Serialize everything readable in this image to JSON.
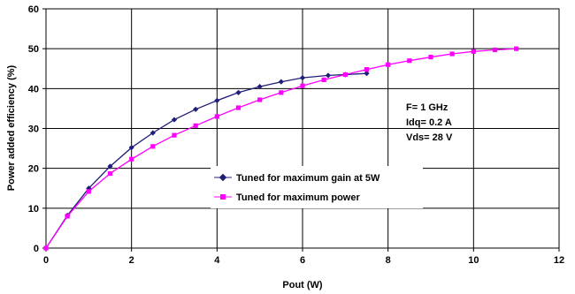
{
  "chart_data": {
    "type": "line",
    "title": "",
    "xlabel": "Pout (W)",
    "ylabel": "Power added efficiency (%)",
    "xlim": [
      0,
      12
    ],
    "ylim": [
      0,
      60
    ],
    "xticks": [
      0,
      2,
      4,
      6,
      8,
      10,
      12
    ],
    "yticks": [
      0,
      10,
      20,
      30,
      40,
      50,
      60
    ],
    "grid": true,
    "legend_position": "center-right",
    "annotations": [
      "F= 1 GHz",
      "Idq= 0.2 A",
      "Vds= 28 V"
    ],
    "series": [
      {
        "name": "Tuned for maximum gain at 5W",
        "color": "#1f1f7a",
        "marker": "diamond",
        "x": [
          0,
          0.5,
          1.0,
          1.5,
          2.0,
          2.5,
          3.0,
          3.5,
          4.0,
          4.5,
          5.0,
          5.5,
          6.0,
          6.6,
          7.0,
          7.5
        ],
        "y": [
          0,
          8.2,
          15.0,
          20.5,
          25.2,
          28.9,
          32.2,
          34.8,
          37.0,
          39.0,
          40.5,
          41.7,
          42.7,
          43.3,
          43.5,
          43.8
        ]
      },
      {
        "name": "Tuned for maximum power",
        "color": "#ff00ff",
        "marker": "square",
        "x": [
          0,
          0.5,
          1.0,
          1.5,
          2.0,
          2.5,
          3.0,
          3.5,
          4.0,
          4.5,
          5.0,
          5.5,
          6.0,
          6.5,
          7.0,
          7.5,
          8.0,
          8.5,
          9.0,
          9.5,
          10.0,
          10.5,
          11.0
        ],
        "y": [
          0,
          8.0,
          14.2,
          18.7,
          22.3,
          25.5,
          28.3,
          30.7,
          33.0,
          35.2,
          37.2,
          39.0,
          40.7,
          42.2,
          43.5,
          44.8,
          46.0,
          47.0,
          47.9,
          48.7,
          49.3,
          49.7,
          50.0
        ]
      }
    ]
  }
}
